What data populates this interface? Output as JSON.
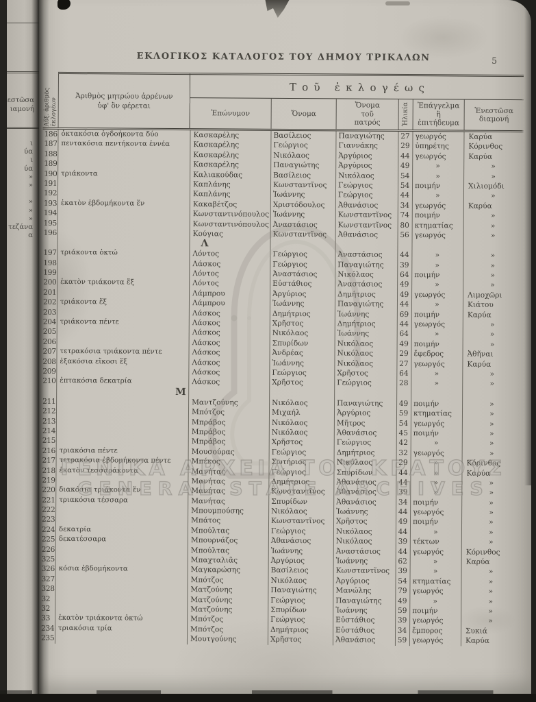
{
  "page": {
    "title": "ΕΚΛΟΓΙΚΟΣ ΚΑΤΑΛΟΓΟΣ ΤΟΥ ΔΗΜΟΥ ΤΡΙΚΑΛΩΝ",
    "page_number": "5"
  },
  "table": {
    "headers": {
      "serial_vertical": "Αὔξ. ἀριθμὸς\nἐκλογέων",
      "registry": "Ἀριθμὸς μητρώου ἀρρένων\nὑφ' ὃν φέρεται",
      "group": "Τοῦ ἐκλογέως",
      "surname": "Ἐπώνυμον",
      "name": "Ὄνομα",
      "father": "Ὄνομα\nτοῦ\nπατρός",
      "age_vertical": "Ἡλικία",
      "occupation": "Ἐπάγγελμα\nἢ\nἐπιτήδευμα",
      "residence": "Ἐνεστῶσα\nδιαμονή"
    },
    "ditto_mark": "»",
    "rows": [
      {
        "num": "186",
        "registry": "ὀκτακόσια ὀγδοήκοντα δύο",
        "surname": "Κασκαρέλης",
        "name": "Βασίλειος",
        "father": "Παναγιώτης",
        "age": "27",
        "occupation": "γεωργός",
        "residence": "Καρύα"
      },
      {
        "num": "187",
        "registry": "πεντακόσια πεντήκοντα ἐννέα",
        "surname": "Κασκαρέλης",
        "name": "Γεώργιος",
        "father": "Γιαννάκης",
        "age": "29",
        "occupation": "ὑπηρέτης",
        "residence": "Κόρινθος"
      },
      {
        "num": "188",
        "registry": "",
        "surname": "Κασκαρέλης",
        "name": "Νικόλαος",
        "father": "Ἀργύριος",
        "age": "44",
        "occupation": "γεωργός",
        "residence": "Καρύα"
      },
      {
        "num": "189",
        "registry": "",
        "surname": "Κασκαρέλης",
        "name": "Παναγιώτης",
        "father": "Ἀργύριος",
        "age": "49",
        "occupation": "»",
        "residence": "»"
      },
      {
        "num": "190",
        "registry": "τριάκοντα",
        "surname": "Καλιακούδας",
        "name": "Βασίλειος",
        "father": "Νικόλαος",
        "age": "54",
        "occupation": "»",
        "residence": "»"
      },
      {
        "num": "191",
        "registry": "",
        "surname": "Καπλάνης",
        "name": "Κωνσταντῖνος",
        "father": "Γεώργιος",
        "age": "54",
        "occupation": "ποιμήν",
        "residence": "Χιλιομόδι"
      },
      {
        "num": "192",
        "registry": "",
        "surname": "Καπλάνης",
        "name": "Ἰωάννης",
        "father": "Γεώργιος",
        "age": "44",
        "occupation": "»",
        "residence": "»"
      },
      {
        "num": "193",
        "registry": "ἑκατὸν ἑβδομήκοντα ἕν",
        "surname": "Κακαβέτζος",
        "name": "Χριστόδουλος",
        "father": "Ἀθανάσιος",
        "age": "34",
        "occupation": "γεωργός",
        "residence": "Καρύα"
      },
      {
        "num": "194",
        "registry": "",
        "surname": "Κωνσταντινόπουλος",
        "name": "Ἰωάννης",
        "father": "Κωνσταντῖνος",
        "age": "74",
        "occupation": "ποιμήν",
        "residence": "»"
      },
      {
        "num": "195",
        "registry": "",
        "surname": "Κωνσταντινόπουλος",
        "name": "Ἀναστάσιος",
        "father": "Κωνσταντῖνος",
        "age": "80",
        "occupation": "κτηματίας",
        "residence": "»"
      },
      {
        "num": "196",
        "registry": "",
        "surname": "Κούγιας",
        "name": "Κωνσταντῖνος",
        "father": "Ἀθανάσιος",
        "age": "56",
        "occupation": "γεωργός",
        "residence": "»"
      },
      {
        "letter": "Λ"
      },
      {
        "num": "197",
        "registry": "τριάκοντα ὀκτώ",
        "surname": "Λόντος",
        "name": "Γεώργιος",
        "father": "Ἀναστάσιος",
        "age": "44",
        "occupation": "»",
        "residence": "»"
      },
      {
        "num": "198",
        "registry": "",
        "surname": "Λάσκος",
        "name": "Γεώργιος",
        "father": "Παναγιώτης",
        "age": "39",
        "occupation": "»",
        "residence": "»"
      },
      {
        "num": "199",
        "registry": "",
        "surname": "Λόντος",
        "name": "Ἀναστάσιος",
        "father": "Νικόλαος",
        "age": "64",
        "occupation": "ποιμήν",
        "residence": "»"
      },
      {
        "num": "200",
        "registry": "ἑκατὸν τριάκοντα ἕξ",
        "surname": "Λόντος",
        "name": "Εὐστάθιος",
        "father": "Ἀναστάσιος",
        "age": "49",
        "occupation": "»",
        "residence": "»"
      },
      {
        "num": "201",
        "registry": "",
        "surname": "Λάμπρου",
        "name": "Ἀργύριος",
        "father": "Δημήτριος",
        "age": "49",
        "occupation": "γεωργός",
        "residence": "Λιμοχῶρι"
      },
      {
        "num": "202",
        "registry": "τριάκοντα ἕξ",
        "surname": "Λάμπρου",
        "name": "Ἰωάννης",
        "father": "Παναγιώτης",
        "age": "44",
        "occupation": "»",
        "residence": "Κιάτου"
      },
      {
        "num": "203",
        "registry": "",
        "surname": "Λάσκος",
        "name": "Δημήτριος",
        "father": "Ἰωάννης",
        "age": "69",
        "occupation": "ποιμήν",
        "residence": "Καρύα"
      },
      {
        "num": "204",
        "registry": "τριάκοντα πέντε",
        "surname": "Λάσκος",
        "name": "Χρῆστος",
        "father": "Δημήτριος",
        "age": "44",
        "occupation": "γεωργός",
        "residence": "»"
      },
      {
        "num": "205",
        "registry": "",
        "surname": "Λάσκος",
        "name": "Νικόλαος",
        "father": "Ἰωάννης",
        "age": "64",
        "occupation": "»",
        "residence": "»"
      },
      {
        "num": "206",
        "registry": "",
        "surname": "Λάσκος",
        "name": "Σπυρίδων",
        "father": "Νικόλαος",
        "age": "49",
        "occupation": "ποιμήν",
        "residence": "»"
      },
      {
        "num": "207",
        "registry": "τετρακόσια τριάκοντα πέντε",
        "surname": "Λάσκος",
        "name": "Ἀνδρέας",
        "father": "Νικόλαος",
        "age": "29",
        "occupation": "ἔφεδρος",
        "residence": "Ἀθῆναι"
      },
      {
        "num": "208",
        "registry": "ἑξακόσια εἴκοσι ἕξ",
        "surname": "Λάσκος",
        "name": "Ἰωάννης",
        "father": "Νικόλαος",
        "age": "27",
        "occupation": "γεωργός",
        "residence": "Καρύα"
      },
      {
        "num": "209",
        "registry": "",
        "surname": "Λάσκος",
        "name": "Γεώργιος",
        "father": "Χρῆστος",
        "age": "64",
        "occupation": "»",
        "residence": "»"
      },
      {
        "num": "210",
        "registry": "ἑπτακόσια δεκατρία",
        "surname": "Λάσκος",
        "name": "Χρῆστος",
        "father": "Γεώργιος",
        "age": "28",
        "occupation": "»",
        "residence": "»"
      },
      {
        "letter": "Μ"
      },
      {
        "num": "211",
        "registry": "",
        "surname": "Μαντζούνης",
        "name": "Νικόλαος",
        "father": "Παναγιώτης",
        "age": "49",
        "occupation": "ποιμήν",
        "residence": "»"
      },
      {
        "num": "212",
        "registry": "",
        "surname": "Μπότζος",
        "name": "Μιχαήλ",
        "father": "Ἀργύριος",
        "age": "59",
        "occupation": "κτηματίας",
        "residence": "»"
      },
      {
        "num": "213",
        "registry": "",
        "surname": "Μπράβος",
        "name": "Νικόλαος",
        "father": "Μῆτρος",
        "age": "54",
        "occupation": "γεωργός",
        "residence": "»"
      },
      {
        "num": "214",
        "registry": "",
        "surname": "Μπράβος",
        "name": "Νικόλαος",
        "father": "Ἀθανάσιος",
        "age": "45",
        "occupation": "ποιμήν",
        "residence": "»"
      },
      {
        "num": "215",
        "registry": "",
        "surname": "Μπράβος",
        "name": "Χρῆστος",
        "father": "Γεώργιος",
        "age": "42",
        "occupation": "»",
        "residence": "»"
      },
      {
        "num": "216",
        "registry": "τριακόσια πέντε",
        "surname": "Μουσούρας",
        "name": "Γεώργιος",
        "father": "Δημήτριος",
        "age": "32",
        "occupation": "γεωργός",
        "residence": "»"
      },
      {
        "num": "217",
        "registry": "τετρακόσια ἑβδομήκοντα πέντε",
        "surname": "Μπέκος",
        "name": "Σωτήριος",
        "father": "Νικόλαος",
        "age": "29",
        "occupation": "»",
        "residence": "Κόρινθος"
      },
      {
        "num": "218",
        "registry": "ἑκατὸν τεσσαράκοντα",
        "surname": "Μανήτας",
        "name": "Γεώργιος",
        "father": "Σπυρίδων",
        "age": "44",
        "occupation": "»",
        "residence": "Καρύα"
      },
      {
        "num": "219",
        "registry": "",
        "surname": "Μανήτας",
        "name": "Δημήτριος",
        "father": "Ἀθανάσιος",
        "age": "44",
        "occupation": "»",
        "residence": "»"
      },
      {
        "num": "220",
        "registry": "διακόσια τριάκοντα ἕν",
        "surname": "Μανήτας",
        "name": "Κωνσταντῖνος",
        "father": "Ἀθανάσιος",
        "age": "39",
        "occupation": "»",
        "residence": "»"
      },
      {
        "num": "221",
        "registry": "τριακόσια τέσσαρα",
        "surname": "Μανήτας",
        "name": "Σπυρίδων",
        "father": "Ἀθανάσιος",
        "age": "34",
        "occupation": "ποιμήν",
        "residence": "»"
      },
      {
        "num": "222",
        "registry": "",
        "surname": "Μπουμπούσης",
        "name": "Νικόλαος",
        "father": "Ἰωάννης",
        "age": "44",
        "occupation": "γεωργός",
        "residence": "»"
      },
      {
        "num": "223",
        "registry": "",
        "surname": "Μπάτος",
        "name": "Κωνσταντῖνος",
        "father": "Χρῆστος",
        "age": "49",
        "occupation": "ποιμήν",
        "residence": "»"
      },
      {
        "num": "224",
        "registry": "δεκατρία",
        "surname": "Μπούλτας",
        "name": "Γεώργιος",
        "father": "Νικόλαος",
        "age": "44",
        "occupation": "»",
        "residence": "»"
      },
      {
        "num": "225",
        "registry": "δεκατέσσαρα",
        "surname": "Μπουρνάζος",
        "name": "Ἀθανάσιος",
        "father": "Νικόλαος",
        "age": "39",
        "occupation": "τέκτων",
        "residence": "»"
      },
      {
        "num": "226",
        "registry": "",
        "surname": "Μπούλτας",
        "name": "Ἰωάννης",
        "father": "Ἀναστάσιος",
        "age": "44",
        "occupation": "γεωργός",
        "residence": "Κόρινθος"
      },
      {
        "num": "325",
        "registry": "",
        "surname": "Μπαχταλιᾶς",
        "name": "Ἀργύριος",
        "father": "Ἰωάννης",
        "age": "62",
        "occupation": "»",
        "residence": "Καρύα"
      },
      {
        "num": "326",
        "registry": "κόσια ἑβδομήκοντα",
        "surname": "Μαγκαρώσης",
        "name": "Βασίλειος",
        "father": "Κωνσταντῖνος",
        "age": "39",
        "occupation": "»",
        "residence": "»"
      },
      {
        "num": "327",
        "registry": "",
        "surname": "Μπότζος",
        "name": "Νικόλαος",
        "father": "Ἀργύριος",
        "age": "54",
        "occupation": "κτηματίας",
        "residence": "»"
      },
      {
        "num": "328",
        "registry": "",
        "surname": "Ματζούνης",
        "name": "Παναγιώτης",
        "father": "Μανώλης",
        "age": "79",
        "occupation": "γεωργός",
        "residence": "»"
      },
      {
        "num": "32",
        "registry": "",
        "surname": "Ματζούνης",
        "name": "Γεώργιος",
        "father": "Παναγιώτης",
        "age": "49",
        "occupation": "»",
        "residence": "»"
      },
      {
        "num": "32",
        "registry": "",
        "surname": "Ματζούνης",
        "name": "Σπυρίδων",
        "father": "Ἰωάννης",
        "age": "59",
        "occupation": "ποιμήν",
        "residence": "»"
      },
      {
        "num": "33",
        "registry": "ἑκατὸν τριάκοντα ὀκτώ",
        "surname": "Μπότζος",
        "name": "Γεώργιος",
        "father": "Εὐστάθιος",
        "age": "39",
        "occupation": "γεωργός",
        "residence": "»"
      },
      {
        "num": "234",
        "registry": "τριακόσια τρία",
        "surname": "Μπότζος",
        "name": "Δημήτριος",
        "father": "Εὐστάθιος",
        "age": "34",
        "occupation": "ἔμπορος",
        "residence": "Συκιά"
      },
      {
        "num": "235",
        "registry": "",
        "surname": "Μουτγούνης",
        "name": "Χρῆστος",
        "father": "Ἀθανάσιος",
        "age": "59",
        "occupation": "γεωργός",
        "residence": "Καρύα"
      }
    ]
  },
  "prev_page_edge": {
    "header": "Ἐνεστῶσα\nιαμονή",
    "values": "ι\nύα\nι\nύα\n»\n»\n\n»\n»\n»\nτεζάνα\nα"
  },
  "watermark": {
    "greek": "ΓΕΝΙΚΑ ΑΡΧΕΙΑ ΤΟΥ ΚΡΑΤΟΥΣ",
    "english": "GENERAL STATE ARCHIVES"
  }
}
